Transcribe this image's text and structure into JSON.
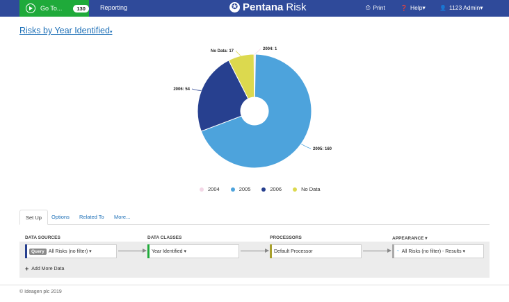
{
  "topbar": {
    "goto_label": "Go To...",
    "goto_count": "130",
    "reporting": "Reporting",
    "brand_name": "Pentana",
    "brand_sub": "Risk",
    "print": "Print",
    "help": "Help▾",
    "user": "1123 Admin▾"
  },
  "page": {
    "title": "Risks by Year Identified",
    "title_caret": "▾"
  },
  "chart_data": {
    "type": "pie",
    "donut": true,
    "categories": [
      "2004",
      "2005",
      "2006",
      "No Data"
    ],
    "values": [
      1,
      160,
      54,
      17
    ],
    "colors": [
      "#f3d7e6",
      "#4da3dc",
      "#27408f",
      "#dcd94e"
    ],
    "labels": [
      "2004: 1",
      "2005: 160",
      "2006: 54",
      "No Data: 17"
    ],
    "legend_position": "bottom"
  },
  "tabs": [
    "Set Up",
    "Options",
    "Related To",
    "More..."
  ],
  "pipeline": {
    "headers": [
      "DATA SOURCES",
      "DATA CLASSES",
      "PROCESSORS",
      "APPEARANCE ▾"
    ],
    "source_badge": "Query",
    "source_label": "All Risks (no filter) ▾",
    "class_label": "Year Identified ▾",
    "processor_label": "Default Processor",
    "appearance_label": "All Risks (no filter) - Results ▾",
    "add_more": "Add More Data"
  },
  "footer": "© Ideagen plc 2019"
}
